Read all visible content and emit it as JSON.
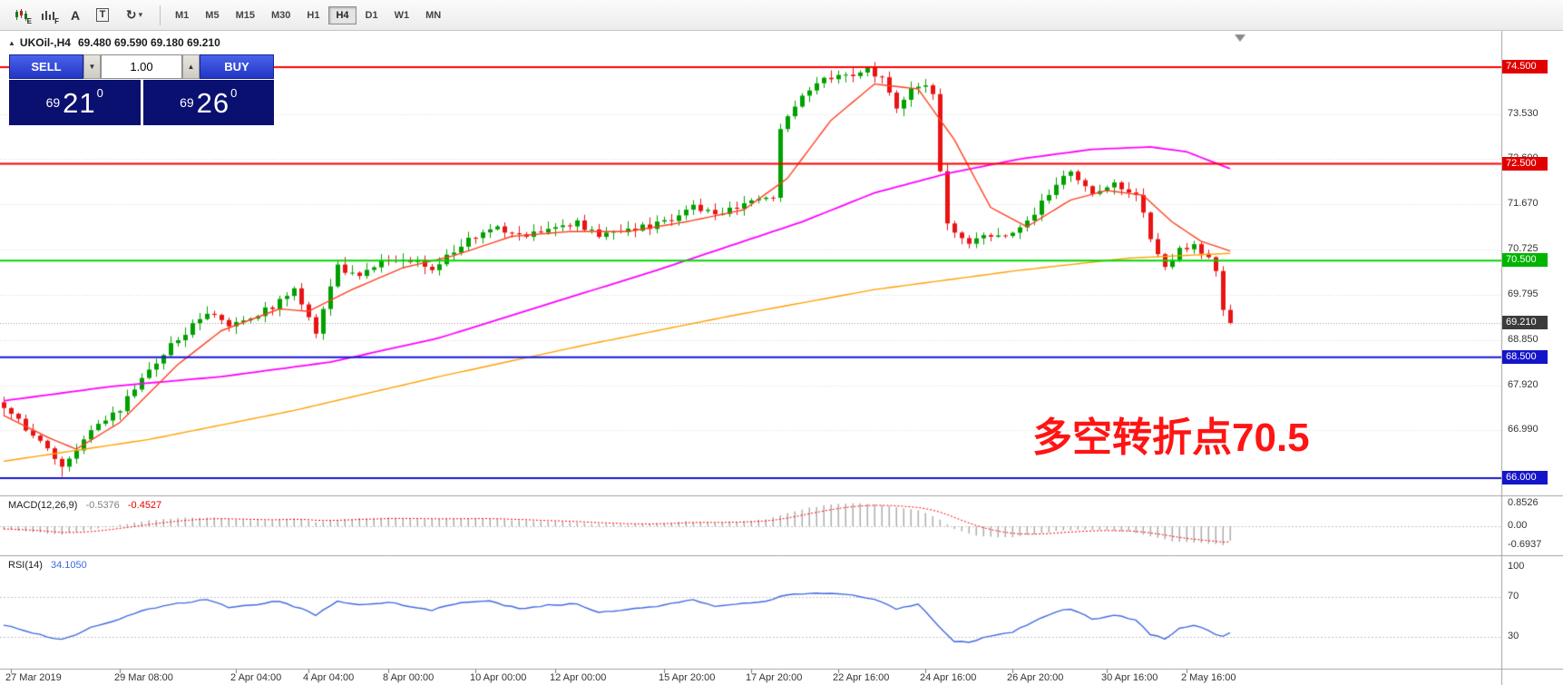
{
  "toolbar": {
    "icons": [
      {
        "name": "candlestick-chart-icon",
        "sub": "E"
      },
      {
        "name": "bar-chart-icon",
        "sub": "F"
      },
      {
        "name": "font-icon",
        "glyph": "A"
      },
      {
        "name": "text-label-icon",
        "glyph": "T"
      },
      {
        "name": "cycles-icon",
        "glyph": "↻",
        "caret": "▾"
      }
    ],
    "timeframes": [
      "M1",
      "M5",
      "M15",
      "M30",
      "H1",
      "H4",
      "D1",
      "W1",
      "MN"
    ],
    "active_timeframe": "H4"
  },
  "chart_header": {
    "collapse_glyph": "▲",
    "symbol_period": "UKOil-,H4",
    "ohlc": "69.480 69.590 69.180 69.210"
  },
  "trade_panel": {
    "sell_label": "SELL",
    "buy_label": "BUY",
    "volume": "1.00",
    "spin_down": "▼",
    "spin_up": "▲",
    "sell_price": {
      "prefix": "69",
      "big": "21",
      "sup": "0"
    },
    "buy_price": {
      "prefix": "69",
      "big": "26",
      "sup": "0"
    }
  },
  "annotation": {
    "text": "多空转折点70.5",
    "color": "#ff1414"
  },
  "indicators": {
    "macd": {
      "label": "MACD(12,26,9)",
      "value": "-0.5376",
      "signal": "-0.4527",
      "axis_labels": [
        "0.8526",
        "0.00",
        "-0.6937"
      ]
    },
    "rsi": {
      "label": "RSI(14)",
      "value": "34.1050",
      "axis_labels": [
        "100",
        "70",
        "30"
      ]
    }
  },
  "price_scale": {
    "ticks": [
      "73.530",
      "72.600",
      "71.670",
      "70.725",
      "69.795",
      "68.850",
      "67.920",
      "66.990"
    ],
    "badges": [
      {
        "text": "74.500",
        "price": 74.5,
        "color": "#e00000"
      },
      {
        "text": "72.500",
        "price": 72.5,
        "color": "#e00000"
      },
      {
        "text": "70.500",
        "price": 70.5,
        "color": "#00b400"
      },
      {
        "text": "69.210",
        "price": 69.21,
        "color": "#3c3c3c"
      },
      {
        "text": "68.500",
        "price": 68.5,
        "color": "#1414c8"
      },
      {
        "text": "66.000",
        "price": 66.0,
        "color": "#1414c8"
      }
    ]
  },
  "chart_data": {
    "type": "candlestick",
    "symbol": "UKOil-",
    "timeframe": "H4",
    "bars": 170,
    "ylim": [
      65.66,
      75.25
    ],
    "yticks": [
      73.53,
      72.6,
      71.67,
      70.725,
      69.795,
      68.85,
      67.92,
      66.99
    ],
    "bid": 69.21,
    "last_candle": {
      "open": 69.48,
      "high": 69.59,
      "low": 69.18,
      "close": 69.21
    },
    "colors": {
      "up": "#00a000",
      "down": "#e81414",
      "grid": "#d8d8d8"
    },
    "levels": [
      {
        "price": 74.5,
        "color": "#ff0000"
      },
      {
        "price": 72.5,
        "color": "#ff0000"
      },
      {
        "price": 70.5,
        "color": "#00d800"
      },
      {
        "price": 68.5,
        "color": "#1414d8"
      },
      {
        "price": 66.0,
        "color": "#1414d8"
      }
    ],
    "close_path": [
      [
        0,
        67.5
      ],
      [
        4,
        66.9
      ],
      [
        8,
        66.25
      ],
      [
        10,
        66.6
      ],
      [
        14,
        67.25
      ],
      [
        16,
        67.45
      ],
      [
        20,
        68.2
      ],
      [
        24,
        68.9
      ],
      [
        28,
        69.4
      ],
      [
        31,
        69.15
      ],
      [
        34,
        69.3
      ],
      [
        38,
        69.65
      ],
      [
        40,
        69.9
      ],
      [
        42,
        69.3
      ],
      [
        43,
        69.0
      ],
      [
        46,
        70.35
      ],
      [
        49,
        70.15
      ],
      [
        53,
        70.55
      ],
      [
        56,
        70.5
      ],
      [
        59,
        70.35
      ],
      [
        63,
        70.85
      ],
      [
        67,
        71.2
      ],
      [
        71,
        71.0
      ],
      [
        75,
        71.15
      ],
      [
        79,
        71.3
      ],
      [
        82,
        71.0
      ],
      [
        86,
        71.1
      ],
      [
        91,
        71.3
      ],
      [
        95,
        71.65
      ],
      [
        98,
        71.45
      ],
      [
        102,
        71.65
      ],
      [
        105,
        71.8
      ],
      [
        106,
        71.85
      ],
      [
        107,
        73.2
      ],
      [
        110,
        73.9
      ],
      [
        113,
        74.25
      ],
      [
        116,
        74.3
      ],
      [
        119,
        74.45
      ],
      [
        121,
        74.3
      ],
      [
        123,
        73.6
      ],
      [
        125,
        74.0
      ],
      [
        127,
        74.15
      ],
      [
        128,
        74.0
      ],
      [
        129,
        72.4
      ],
      [
        130,
        71.2
      ],
      [
        133,
        70.9
      ],
      [
        136,
        71.0
      ],
      [
        139,
        71.1
      ],
      [
        142,
        71.5
      ],
      [
        145,
        72.1
      ],
      [
        147,
        72.35
      ],
      [
        150,
        71.9
      ],
      [
        153,
        72.1
      ],
      [
        156,
        71.85
      ],
      [
        158,
        71.0
      ],
      [
        160,
        70.4
      ],
      [
        162,
        70.7
      ],
      [
        164,
        70.8
      ],
      [
        166,
        70.5
      ],
      [
        167,
        70.3
      ],
      [
        168,
        69.5
      ],
      [
        169,
        69.21
      ]
    ],
    "ma_fast": {
      "color": "#ff4020",
      "path": [
        [
          0,
          67.3
        ],
        [
          6,
          66.85
        ],
        [
          10,
          66.6
        ],
        [
          16,
          67.15
        ],
        [
          24,
          68.35
        ],
        [
          30,
          69.05
        ],
        [
          38,
          69.5
        ],
        [
          42,
          69.45
        ],
        [
          48,
          69.9
        ],
        [
          55,
          70.35
        ],
        [
          62,
          70.6
        ],
        [
          70,
          71.0
        ],
        [
          78,
          71.1
        ],
        [
          86,
          71.1
        ],
        [
          94,
          71.3
        ],
        [
          102,
          71.55
        ],
        [
          108,
          72.2
        ],
        [
          114,
          73.4
        ],
        [
          120,
          74.15
        ],
        [
          126,
          74.05
        ],
        [
          131,
          73.0
        ],
        [
          136,
          71.6
        ],
        [
          141,
          71.2
        ],
        [
          147,
          71.75
        ],
        [
          152,
          71.95
        ],
        [
          157,
          71.85
        ],
        [
          161,
          71.3
        ],
        [
          165,
          70.9
        ],
        [
          169,
          70.7
        ]
      ]
    },
    "ma_mid": {
      "color": "#ff00ff",
      "path": [
        [
          0,
          67.6
        ],
        [
          15,
          67.9
        ],
        [
          30,
          68.1
        ],
        [
          45,
          68.4
        ],
        [
          60,
          68.9
        ],
        [
          75,
          69.6
        ],
        [
          90,
          70.3
        ],
        [
          100,
          70.8
        ],
        [
          110,
          71.3
        ],
        [
          120,
          71.9
        ],
        [
          130,
          72.3
        ],
        [
          140,
          72.6
        ],
        [
          150,
          72.8
        ],
        [
          158,
          72.85
        ],
        [
          163,
          72.75
        ],
        [
          169,
          72.4
        ]
      ]
    },
    "ma_slow": {
      "color": "#ffa000",
      "path": [
        [
          0,
          66.35
        ],
        [
          20,
          66.8
        ],
        [
          40,
          67.4
        ],
        [
          60,
          68.1
        ],
        [
          80,
          68.75
        ],
        [
          100,
          69.35
        ],
        [
          120,
          69.9
        ],
        [
          140,
          70.3
        ],
        [
          155,
          70.55
        ],
        [
          169,
          70.65
        ]
      ]
    },
    "macd": {
      "histogram_color": "#adadad",
      "signal_color": "#ff0000",
      "ylim": [
        -0.6937,
        0.8526
      ],
      "current": -0.5376,
      "signal_current": -0.4527,
      "path": [
        [
          0,
          -0.1
        ],
        [
          4,
          -0.22
        ],
        [
          8,
          -0.3
        ],
        [
          12,
          -0.12
        ],
        [
          16,
          0.05
        ],
        [
          20,
          0.22
        ],
        [
          24,
          0.3
        ],
        [
          28,
          0.33
        ],
        [
          32,
          0.25
        ],
        [
          36,
          0.22
        ],
        [
          40,
          0.28
        ],
        [
          43,
          0.15
        ],
        [
          46,
          0.25
        ],
        [
          50,
          0.3
        ],
        [
          54,
          0.32
        ],
        [
          58,
          0.25
        ],
        [
          62,
          0.28
        ],
        [
          66,
          0.3
        ],
        [
          70,
          0.22
        ],
        [
          74,
          0.18
        ],
        [
          78,
          0.15
        ],
        [
          82,
          0.08
        ],
        [
          86,
          0.06
        ],
        [
          90,
          0.1
        ],
        [
          94,
          0.18
        ],
        [
          98,
          0.14
        ],
        [
          102,
          0.18
        ],
        [
          105,
          0.25
        ],
        [
          108,
          0.5
        ],
        [
          111,
          0.68
        ],
        [
          114,
          0.8
        ],
        [
          117,
          0.85
        ],
        [
          120,
          0.82
        ],
        [
          123,
          0.7
        ],
        [
          126,
          0.6
        ],
        [
          129,
          0.25
        ],
        [
          131,
          -0.1
        ],
        [
          134,
          -0.35
        ],
        [
          137,
          -0.42
        ],
        [
          140,
          -0.38
        ],
        [
          143,
          -0.25
        ],
        [
          146,
          -0.15
        ],
        [
          149,
          -0.12
        ],
        [
          152,
          -0.15
        ],
        [
          155,
          -0.2
        ],
        [
          158,
          -0.38
        ],
        [
          161,
          -0.55
        ],
        [
          163,
          -0.6
        ],
        [
          165,
          -0.62
        ],
        [
          167,
          -0.66
        ],
        [
          168,
          -0.6937
        ],
        [
          169,
          -0.5376
        ]
      ]
    },
    "rsi": {
      "color": "#4169e1",
      "levels": [
        70,
        30
      ],
      "current": 34.105,
      "path": [
        [
          0,
          42
        ],
        [
          3,
          36
        ],
        [
          6,
          30
        ],
        [
          8,
          27
        ],
        [
          10,
          33
        ],
        [
          13,
          42
        ],
        [
          16,
          48
        ],
        [
          20,
          58
        ],
        [
          24,
          64
        ],
        [
          28,
          67
        ],
        [
          31,
          60
        ],
        [
          34,
          62
        ],
        [
          38,
          66
        ],
        [
          41,
          58
        ],
        [
          43,
          52
        ],
        [
          46,
          66
        ],
        [
          49,
          62
        ],
        [
          53,
          65
        ],
        [
          56,
          60
        ],
        [
          59,
          57
        ],
        [
          63,
          64
        ],
        [
          67,
          66
        ],
        [
          71,
          58
        ],
        [
          75,
          62
        ],
        [
          79,
          63
        ],
        [
          82,
          55
        ],
        [
          86,
          57
        ],
        [
          91,
          62
        ],
        [
          95,
          67
        ],
        [
          98,
          60
        ],
        [
          102,
          64
        ],
        [
          105,
          66
        ],
        [
          108,
          72
        ],
        [
          111,
          74
        ],
        [
          114,
          73
        ],
        [
          117,
          72
        ],
        [
          120,
          68
        ],
        [
          123,
          58
        ],
        [
          126,
          63
        ],
        [
          129,
          40
        ],
        [
          131,
          26
        ],
        [
          133,
          25
        ],
        [
          136,
          31
        ],
        [
          139,
          35
        ],
        [
          142,
          45
        ],
        [
          145,
          55
        ],
        [
          147,
          58
        ],
        [
          150,
          48
        ],
        [
          153,
          52
        ],
        [
          156,
          47
        ],
        [
          158,
          33
        ],
        [
          160,
          28
        ],
        [
          162,
          38
        ],
        [
          164,
          42
        ],
        [
          166,
          36
        ],
        [
          168,
          30
        ],
        [
          169,
          34.1
        ]
      ]
    },
    "x_labels": [
      {
        "text": "27 Mar 2019",
        "bar": 1
      },
      {
        "text": "29 Mar 08:00",
        "bar": 16
      },
      {
        "text": "2 Apr 04:00",
        "bar": 32
      },
      {
        "text": "4 Apr 04:00",
        "bar": 42
      },
      {
        "text": "8 Apr 00:00",
        "bar": 53
      },
      {
        "text": "10 Apr 00:00",
        "bar": 65
      },
      {
        "text": "12 Apr 00:00",
        "bar": 76
      },
      {
        "text": "15 Apr 20:00",
        "bar": 91
      },
      {
        "text": "17 Apr 20:00",
        "bar": 103
      },
      {
        "text": "22 Apr 16:00",
        "bar": 115
      },
      {
        "text": "24 Apr 16:00",
        "bar": 127
      },
      {
        "text": "26 Apr 20:00",
        "bar": 139
      },
      {
        "text": "30 Apr 16:00",
        "bar": 152
      },
      {
        "text": "2 May 16:00",
        "bar": 163
      }
    ]
  }
}
